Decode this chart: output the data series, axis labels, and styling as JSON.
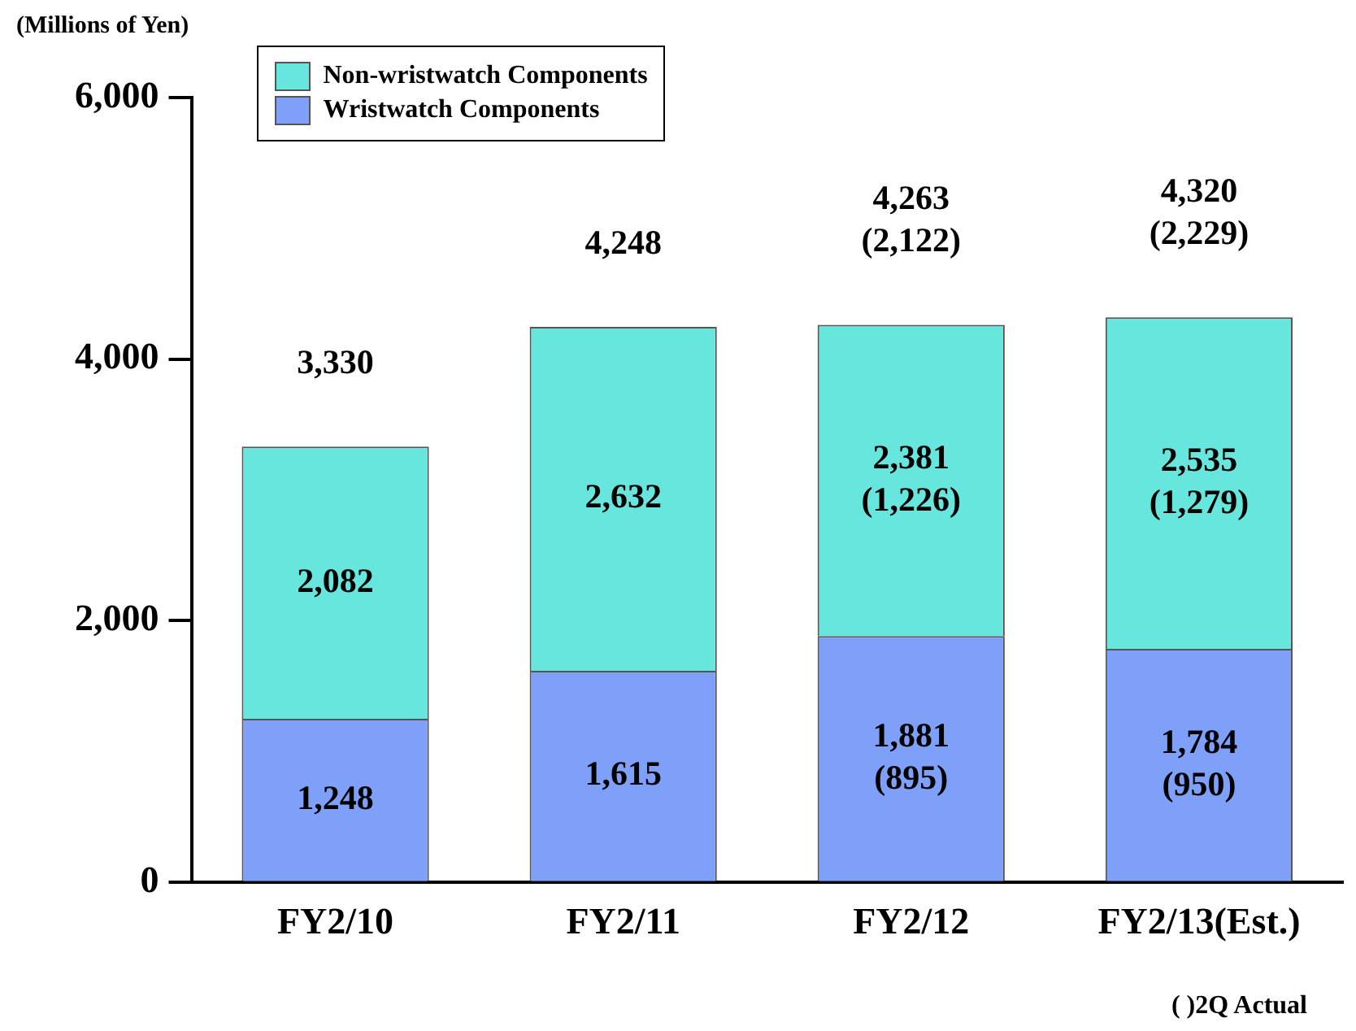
{
  "chart_data": {
    "type": "bar",
    "stacked": true,
    "ylabel": "(Millions of Yen)",
    "categories": [
      "FY2/10",
      "FY2/11",
      "FY2/12",
      "FY2/13(Est.)"
    ],
    "series": [
      {
        "name": "Wristwatch Components",
        "color": "#7fa0f8",
        "values": [
          1248,
          1615,
          1881,
          1784
        ],
        "value_labels": [
          "1,248",
          "1,615",
          "1,881\n(895)",
          "1,784\n(950)"
        ]
      },
      {
        "name": "Non-wristwatch Components",
        "color": "#66e6dc",
        "values": [
          2082,
          2632,
          2381,
          2535
        ],
        "value_labels": [
          "2,082",
          "2,632",
          "2,381\n(1,226)",
          "2,535\n(1,279)"
        ]
      }
    ],
    "totals": [
      "3,330",
      "4,248",
      "4,263\n(2,122)",
      "4,320\n(2,229)"
    ],
    "ylim": [
      0,
      6000
    ],
    "yticks": [
      {
        "value": 0,
        "label": "0"
      },
      {
        "value": 2000,
        "label": "2,000"
      },
      {
        "value": 4000,
        "label": "4,000"
      },
      {
        "value": 6000,
        "label": "6,000"
      }
    ],
    "grid": false,
    "legend": "top left",
    "annotations": [
      "(   )2Q Actual"
    ]
  }
}
